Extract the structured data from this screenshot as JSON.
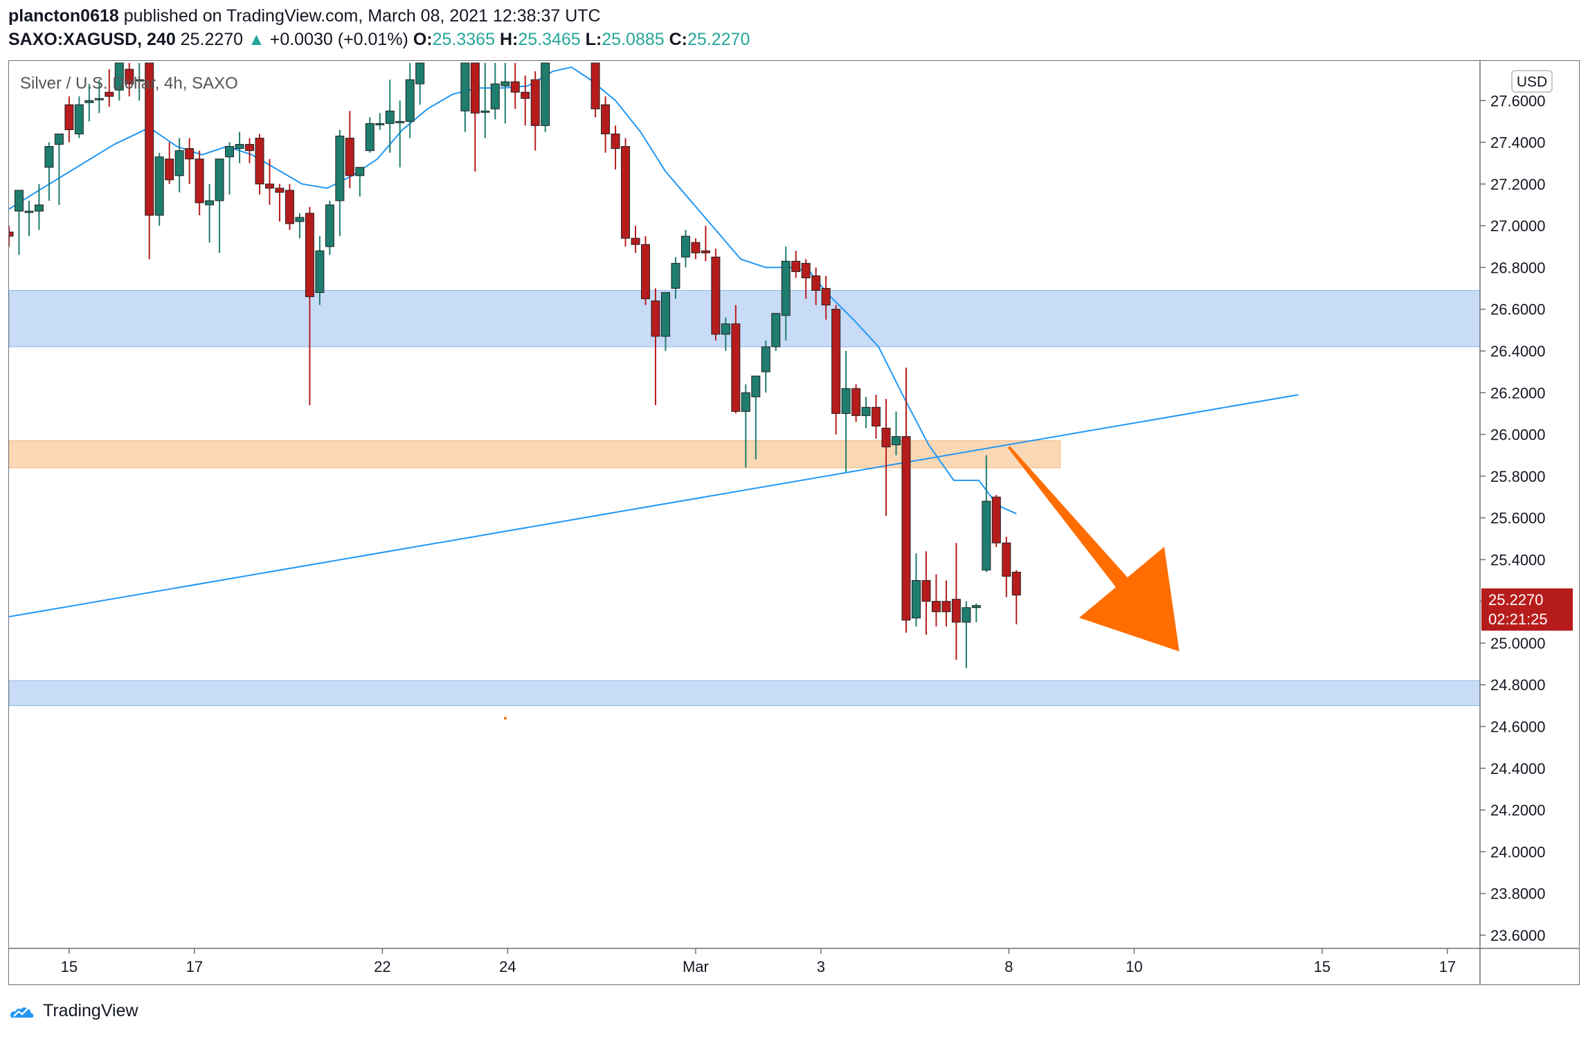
{
  "header": {
    "author": "plancton0618",
    "published_text": "published on TradingView.com, March 08, 2021 12:38:37 UTC",
    "symbol": "SAXO:XAGUSD, 240",
    "last_price": "25.2270",
    "change_arrow": "▲",
    "change": "+0.0030 (+0.01%)",
    "o_label": "O:",
    "o_value": "25.3365",
    "h_label": "H:",
    "h_value": "25.3465",
    "l_label": "L:",
    "l_value": "25.0885",
    "c_label": "C:",
    "c_value": "25.2270"
  },
  "legend": {
    "title": "Silver / U.S. Dollar, 4h, SAXO"
  },
  "price_scale": {
    "currency": "USD",
    "current_price": "25.2270",
    "countdown": "02:21:25"
  },
  "footer": {
    "brand": "TradingView",
    "logo_icon": "tradingview-logo-icon"
  },
  "colors": {
    "up": "#26a69a",
    "down": "#ef5350",
    "up_body": "#1e7d6e",
    "down_body": "#b71c1c",
    "ma": "#2196f3",
    "trendline": "#2196f3",
    "zone_blue": "#c9dcf7",
    "zone_orange": "#fbd8b5",
    "arrow": "#ff6d00",
    "price_tag": "#b71c1c"
  },
  "chart_data": {
    "type": "candlestick",
    "symbol": "SAXO:XAGUSD",
    "interval": "4h",
    "y_axis": {
      "ticks": [
        "27.6000",
        "27.4000",
        "27.2000",
        "27.0000",
        "26.8000",
        "26.6000",
        "26.4000",
        "26.2000",
        "26.0000",
        "25.8000",
        "25.6000",
        "25.4000",
        "25.2000",
        "25.0000",
        "24.8000",
        "24.6000",
        "24.4000",
        "24.2000",
        "24.0000",
        "23.8000",
        "23.6000"
      ],
      "range": [
        23.57,
        27.78
      ]
    },
    "x_axis": {
      "ticks": [
        {
          "label": "15",
          "x": 5.4
        },
        {
          "label": "17",
          "x": 15.4
        },
        {
          "label": "22",
          "x": 30.4
        },
        {
          "label": "24",
          "x": 40.4
        },
        {
          "label": "Mar",
          "x": 55.4
        },
        {
          "label": "3",
          "x": 65.4
        },
        {
          "label": "8",
          "x": 80.4
        },
        {
          "label": "10",
          "x": 90.4
        },
        {
          "label": "15",
          "x": 105.4
        },
        {
          "label": "17",
          "x": 115.4
        }
      ],
      "range": [
        0.6,
        118.0
      ]
    },
    "candles": [
      {
        "x": 0.6,
        "o": 26.97,
        "h": 27.0,
        "l": 26.9,
        "c": 26.95
      },
      {
        "x": 1.4,
        "o": 27.07,
        "h": 27.13,
        "l": 26.86,
        "c": 27.17
      },
      {
        "x": 2.2,
        "o": 27.07,
        "h": 27.12,
        "l": 26.95,
        "c": 27.07
      },
      {
        "x": 3.0,
        "o": 27.07,
        "h": 27.2,
        "l": 26.98,
        "c": 27.1
      },
      {
        "x": 3.8,
        "o": 27.28,
        "h": 27.4,
        "l": 27.12,
        "c": 27.38
      },
      {
        "x": 4.6,
        "o": 27.39,
        "h": 27.42,
        "l": 27.1,
        "c": 27.44
      },
      {
        "x": 5.4,
        "o": 27.58,
        "h": 27.62,
        "l": 27.4,
        "c": 27.46
      },
      {
        "x": 6.2,
        "o": 27.44,
        "h": 27.62,
        "l": 27.42,
        "c": 27.58
      },
      {
        "x": 7.0,
        "o": 27.59,
        "h": 27.68,
        "l": 27.5,
        "c": 27.6
      },
      {
        "x": 7.8,
        "o": 27.61,
        "h": 27.7,
        "l": 27.54,
        "c": 27.61
      },
      {
        "x": 8.6,
        "o": 27.64,
        "h": 27.75,
        "l": 27.57,
        "c": 27.62
      },
      {
        "x": 9.4,
        "o": 27.65,
        "h": 27.78,
        "l": 27.6,
        "c": 27.78
      },
      {
        "x": 10.2,
        "o": 27.75,
        "h": 27.78,
        "l": 27.62,
        "c": 27.68
      },
      {
        "x": 11.0,
        "o": 27.7,
        "h": 27.78,
        "l": 27.6,
        "c": 27.7
      },
      {
        "x": 11.8,
        "o": 27.78,
        "h": 27.78,
        "l": 26.84,
        "c": 27.05
      },
      {
        "x": 12.6,
        "o": 27.05,
        "h": 27.35,
        "l": 27.0,
        "c": 27.33
      },
      {
        "x": 13.4,
        "o": 27.32,
        "h": 27.4,
        "l": 27.2,
        "c": 27.22
      },
      {
        "x": 14.2,
        "o": 27.24,
        "h": 27.42,
        "l": 27.16,
        "c": 27.36
      },
      {
        "x": 15.0,
        "o": 27.37,
        "h": 27.42,
        "l": 27.2,
        "c": 27.32
      },
      {
        "x": 15.8,
        "o": 27.32,
        "h": 27.36,
        "l": 27.05,
        "c": 27.11
      },
      {
        "x": 16.6,
        "o": 27.1,
        "h": 27.2,
        "l": 26.92,
        "c": 27.12
      },
      {
        "x": 17.4,
        "o": 27.12,
        "h": 27.3,
        "l": 26.87,
        "c": 27.32
      },
      {
        "x": 18.2,
        "o": 27.33,
        "h": 27.4,
        "l": 27.15,
        "c": 27.38
      },
      {
        "x": 19.0,
        "o": 27.37,
        "h": 27.45,
        "l": 27.3,
        "c": 27.39
      },
      {
        "x": 19.8,
        "o": 27.39,
        "h": 27.42,
        "l": 27.3,
        "c": 27.36
      },
      {
        "x": 20.6,
        "o": 27.42,
        "h": 27.44,
        "l": 27.15,
        "c": 27.2
      },
      {
        "x": 21.4,
        "o": 27.2,
        "h": 27.32,
        "l": 27.1,
        "c": 27.18
      },
      {
        "x": 22.2,
        "o": 27.18,
        "h": 27.2,
        "l": 27.02,
        "c": 27.16
      },
      {
        "x": 23.0,
        "o": 27.17,
        "h": 27.2,
        "l": 26.98,
        "c": 27.01
      },
      {
        "x": 23.8,
        "o": 27.02,
        "h": 27.06,
        "l": 26.94,
        "c": 27.04
      },
      {
        "x": 24.6,
        "o": 27.06,
        "h": 27.09,
        "l": 26.14,
        "c": 26.66
      },
      {
        "x": 25.4,
        "o": 26.68,
        "h": 26.95,
        "l": 26.62,
        "c": 26.88
      },
      {
        "x": 26.2,
        "o": 26.9,
        "h": 27.12,
        "l": 26.86,
        "c": 27.1
      },
      {
        "x": 27.0,
        "o": 27.12,
        "h": 27.46,
        "l": 26.95,
        "c": 27.43
      },
      {
        "x": 27.8,
        "o": 27.42,
        "h": 27.55,
        "l": 27.18,
        "c": 27.24
      },
      {
        "x": 28.6,
        "o": 27.24,
        "h": 27.27,
        "l": 27.14,
        "c": 27.28
      },
      {
        "x": 29.4,
        "o": 27.36,
        "h": 27.52,
        "l": 27.35,
        "c": 27.49
      },
      {
        "x": 30.2,
        "o": 27.49,
        "h": 27.54,
        "l": 27.46,
        "c": 27.49
      },
      {
        "x": 31.0,
        "o": 27.49,
        "h": 27.7,
        "l": 27.35,
        "c": 27.55
      },
      {
        "x": 31.8,
        "o": 27.5,
        "h": 27.6,
        "l": 27.28,
        "c": 27.5
      },
      {
        "x": 32.6,
        "o": 27.5,
        "h": 27.78,
        "l": 27.42,
        "c": 27.7
      },
      {
        "x": 33.4,
        "o": 27.68,
        "h": 27.78,
        "l": 27.58,
        "c": 27.78
      },
      {
        "x": 37.0,
        "o": 27.55,
        "h": 27.78,
        "l": 27.45,
        "c": 27.78
      },
      {
        "x": 37.8,
        "o": 27.78,
        "h": 27.78,
        "l": 27.26,
        "c": 27.54
      },
      {
        "x": 38.6,
        "o": 27.55,
        "h": 27.78,
        "l": 27.42,
        "c": 27.55
      },
      {
        "x": 39.4,
        "o": 27.56,
        "h": 27.78,
        "l": 27.51,
        "c": 27.68
      },
      {
        "x": 40.2,
        "o": 27.67,
        "h": 27.78,
        "l": 27.49,
        "c": 27.69
      },
      {
        "x": 41.0,
        "o": 27.69,
        "h": 27.78,
        "l": 27.56,
        "c": 27.64
      },
      {
        "x": 41.8,
        "o": 27.64,
        "h": 27.72,
        "l": 27.48,
        "c": 27.61
      },
      {
        "x": 42.6,
        "o": 27.7,
        "h": 27.74,
        "l": 27.36,
        "c": 27.48
      },
      {
        "x": 43.4,
        "o": 27.48,
        "h": 27.78,
        "l": 27.45,
        "c": 27.78
      },
      {
        "x": 47.4,
        "o": 27.78,
        "h": 27.78,
        "l": 27.52,
        "c": 27.56
      },
      {
        "x": 48.2,
        "o": 27.58,
        "h": 27.62,
        "l": 27.35,
        "c": 27.44
      },
      {
        "x": 49.0,
        "o": 27.44,
        "h": 27.48,
        "l": 27.27,
        "c": 27.37
      },
      {
        "x": 49.8,
        "o": 27.38,
        "h": 27.42,
        "l": 26.9,
        "c": 26.94
      },
      {
        "x": 50.6,
        "o": 26.94,
        "h": 27.0,
        "l": 26.87,
        "c": 26.91
      },
      {
        "x": 51.4,
        "o": 26.91,
        "h": 26.95,
        "l": 26.62,
        "c": 26.65
      },
      {
        "x": 52.2,
        "o": 26.64,
        "h": 26.7,
        "l": 26.14,
        "c": 26.47
      },
      {
        "x": 53.0,
        "o": 26.47,
        "h": 26.68,
        "l": 26.4,
        "c": 26.68
      },
      {
        "x": 53.8,
        "o": 26.7,
        "h": 26.85,
        "l": 26.65,
        "c": 26.82
      },
      {
        "x": 54.6,
        "o": 26.85,
        "h": 26.98,
        "l": 26.8,
        "c": 26.95
      },
      {
        "x": 55.4,
        "o": 26.92,
        "h": 26.94,
        "l": 26.84,
        "c": 26.87
      },
      {
        "x": 56.2,
        "o": 26.88,
        "h": 27.0,
        "l": 26.83,
        "c": 26.87
      },
      {
        "x": 57.0,
        "o": 26.85,
        "h": 26.89,
        "l": 26.45,
        "c": 26.48
      },
      {
        "x": 57.8,
        "o": 26.48,
        "h": 26.56,
        "l": 26.4,
        "c": 26.53
      },
      {
        "x": 58.6,
        "o": 26.53,
        "h": 26.62,
        "l": 26.1,
        "c": 26.11
      },
      {
        "x": 59.4,
        "o": 26.11,
        "h": 26.24,
        "l": 25.84,
        "c": 26.2
      },
      {
        "x": 60.2,
        "o": 26.18,
        "h": 26.25,
        "l": 25.88,
        "c": 26.28
      },
      {
        "x": 61.0,
        "o": 26.3,
        "h": 26.45,
        "l": 26.2,
        "c": 26.42
      },
      {
        "x": 61.8,
        "o": 26.42,
        "h": 26.58,
        "l": 26.4,
        "c": 26.58
      },
      {
        "x": 62.6,
        "o": 26.57,
        "h": 26.9,
        "l": 26.45,
        "c": 26.83
      },
      {
        "x": 63.4,
        "o": 26.83,
        "h": 26.88,
        "l": 26.75,
        "c": 26.78
      },
      {
        "x": 64.2,
        "o": 26.82,
        "h": 26.84,
        "l": 26.65,
        "c": 26.75
      },
      {
        "x": 65.0,
        "o": 26.76,
        "h": 26.8,
        "l": 26.62,
        "c": 26.69
      },
      {
        "x": 65.8,
        "o": 26.7,
        "h": 26.76,
        "l": 26.55,
        "c": 26.62
      },
      {
        "x": 66.6,
        "o": 26.6,
        "h": 26.62,
        "l": 26.0,
        "c": 26.1
      },
      {
        "x": 67.4,
        "o": 26.1,
        "h": 26.4,
        "l": 25.82,
        "c": 26.22
      },
      {
        "x": 68.2,
        "o": 26.22,
        "h": 26.24,
        "l": 26.06,
        "c": 26.09
      },
      {
        "x": 69.0,
        "o": 26.09,
        "h": 26.18,
        "l": 26.03,
        "c": 26.13
      },
      {
        "x": 69.8,
        "o": 26.13,
        "h": 26.19,
        "l": 25.98,
        "c": 26.04
      },
      {
        "x": 70.6,
        "o": 26.03,
        "h": 26.17,
        "l": 25.61,
        "c": 25.94
      },
      {
        "x": 71.4,
        "o": 25.95,
        "h": 26.11,
        "l": 25.9,
        "c": 25.99
      },
      {
        "x": 72.2,
        "o": 25.99,
        "h": 26.32,
        "l": 25.05,
        "c": 25.11
      },
      {
        "x": 73.0,
        "o": 25.12,
        "h": 25.43,
        "l": 25.08,
        "c": 25.3
      },
      {
        "x": 73.8,
        "o": 25.3,
        "h": 25.44,
        "l": 25.04,
        "c": 25.2
      },
      {
        "x": 74.6,
        "o": 25.2,
        "h": 25.33,
        "l": 25.08,
        "c": 25.15
      },
      {
        "x": 75.4,
        "o": 25.2,
        "h": 25.3,
        "l": 25.08,
        "c": 25.15
      },
      {
        "x": 76.2,
        "o": 25.21,
        "h": 25.48,
        "l": 24.92,
        "c": 25.1
      },
      {
        "x": 77.0,
        "o": 25.1,
        "h": 25.2,
        "l": 24.88,
        "c": 25.17
      },
      {
        "x": 77.8,
        "o": 25.17,
        "h": 25.19,
        "l": 25.1,
        "c": 25.18
      },
      {
        "x": 78.6,
        "o": 25.35,
        "h": 25.9,
        "l": 25.34,
        "c": 25.68
      },
      {
        "x": 79.4,
        "o": 25.7,
        "h": 25.71,
        "l": 25.46,
        "c": 25.48
      },
      {
        "x": 80.2,
        "o": 25.48,
        "h": 25.51,
        "l": 25.22,
        "c": 25.32
      },
      {
        "x": 81.0,
        "o": 25.34,
        "h": 25.35,
        "l": 25.09,
        "c": 25.23
      }
    ],
    "moving_average": {
      "x": [
        0.6,
        3,
        6,
        9,
        11.8,
        14,
        16,
        18,
        20,
        22,
        24,
        26,
        28,
        30,
        32,
        34,
        36,
        38,
        40,
        42,
        44,
        45.5,
        47,
        49,
        51,
        53,
        55,
        57,
        59,
        61,
        63,
        64.5,
        66,
        68,
        70,
        72,
        74,
        76,
        78,
        79.5,
        81
      ],
      "y": [
        27.08,
        27.17,
        27.28,
        27.39,
        27.47,
        27.38,
        27.34,
        27.38,
        27.34,
        27.27,
        27.2,
        27.18,
        27.24,
        27.32,
        27.46,
        27.56,
        27.63,
        27.66,
        27.66,
        27.67,
        27.74,
        27.76,
        27.7,
        27.6,
        27.45,
        27.26,
        27.12,
        26.98,
        26.84,
        26.8,
        26.8,
        26.78,
        26.67,
        26.55,
        26.42,
        26.18,
        25.95,
        25.78,
        25.78,
        25.66,
        25.62
      ]
    },
    "trendline": {
      "x": [
        0,
        103.5
      ],
      "y": [
        25.12,
        26.19
      ]
    },
    "zones": [
      {
        "name": "resistance-zone",
        "y1": 26.42,
        "y2": 26.69,
        "x_end": 118.0,
        "color": "#c9dcf7"
      },
      {
        "name": "pivot-zone",
        "y1": 25.84,
        "y2": 25.97,
        "x_end": 84.5,
        "color": "#fbd8b5"
      },
      {
        "name": "support-zone",
        "y1": 24.7,
        "y2": 24.82,
        "x_end": 118.0,
        "color": "#c9dcf7"
      }
    ],
    "arrow": {
      "from": {
        "x": 80.4,
        "y": 25.94
      },
      "to": {
        "x": 94.0,
        "y": 24.96
      }
    },
    "marker_dot": {
      "x": 40.2,
      "y": 24.64
    }
  }
}
